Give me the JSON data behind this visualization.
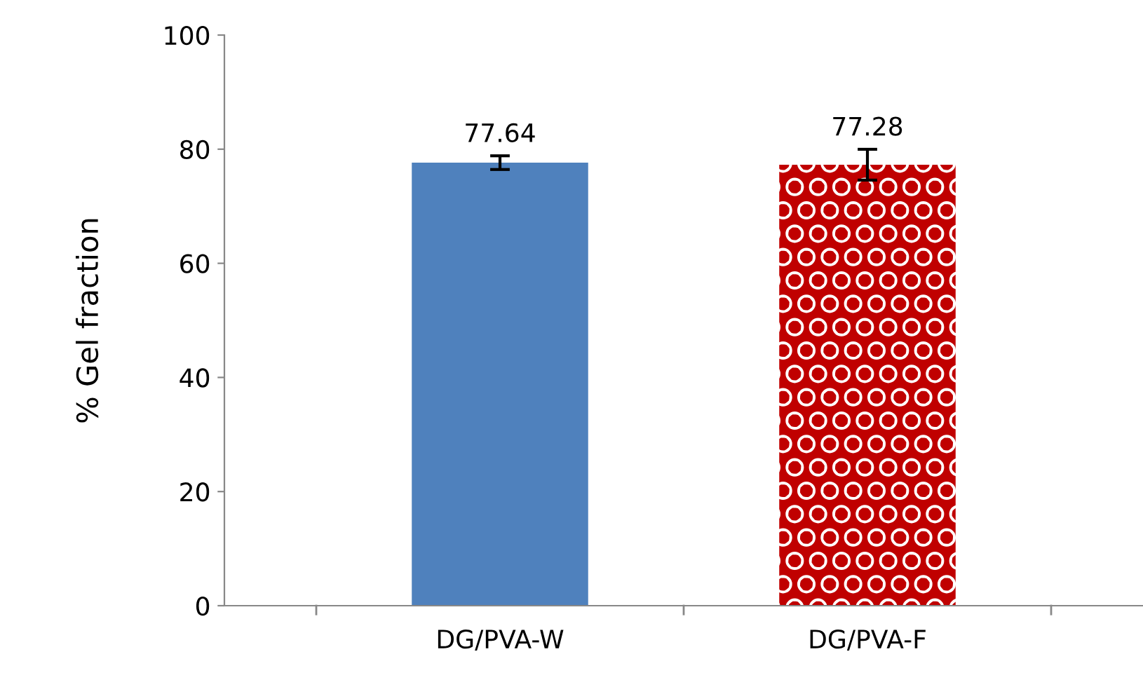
{
  "chart_data": {
    "type": "bar",
    "ylabel": "% Gel fraction",
    "categories": [
      "DG/PVA-W",
      "DG/PVA-F"
    ],
    "values": [
      77.64,
      77.28
    ],
    "errors": [
      1.2,
      2.7
    ],
    "colors": [
      "#4f81bd",
      "#c00000"
    ],
    "data_labels": true,
    "ylim": [
      0,
      100
    ],
    "yticks": [
      0,
      20,
      40,
      60,
      80,
      100
    ],
    "grid": false,
    "legend": false
  }
}
